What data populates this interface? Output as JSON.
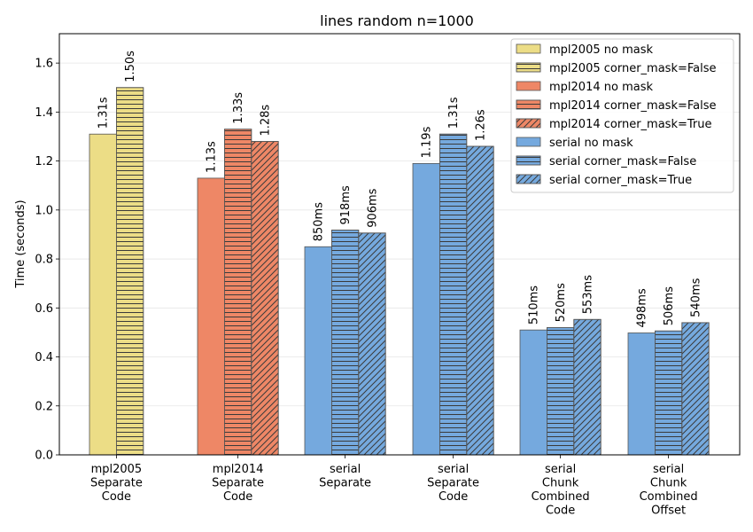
{
  "chart_data": {
    "type": "bar",
    "title": "lines random n=1000",
    "xlabel": "",
    "ylabel": "Time (seconds)",
    "ylim": [
      0,
      1.72
    ],
    "yticks": [
      "0.0",
      "0.2",
      "0.4",
      "0.6",
      "0.8",
      "1.0",
      "1.2",
      "1.4",
      "1.6"
    ],
    "grid": "horizontal",
    "legend_position": "top-right",
    "colors": {
      "mpl2005": "#ecdd86",
      "mpl2014": "#ee8766",
      "serial": "#75a9de"
    },
    "categories": [
      [
        "mpl2005",
        "Separate",
        "Code"
      ],
      [
        "mpl2014",
        "Separate",
        "Code"
      ],
      [
        "serial",
        "Separate"
      ],
      [
        "serial",
        "Separate",
        "Code"
      ],
      [
        "serial",
        "Chunk",
        "Combined",
        "Code"
      ],
      [
        "serial",
        "Chunk",
        "Combined",
        "Offset"
      ]
    ],
    "series": [
      {
        "name": "mpl2005 no mask",
        "group": "mpl2005",
        "hatch": "none",
        "values": [
          1.31,
          null,
          null,
          null,
          null,
          null
        ],
        "labels": [
          "1.31s",
          null,
          null,
          null,
          null,
          null
        ]
      },
      {
        "name": "mpl2005 corner_mask=False",
        "group": "mpl2005",
        "hatch": "horizontal",
        "values": [
          1.5,
          null,
          null,
          null,
          null,
          null
        ],
        "labels": [
          "1.50s",
          null,
          null,
          null,
          null,
          null
        ]
      },
      {
        "name": "mpl2014 no mask",
        "group": "mpl2014",
        "hatch": "none",
        "values": [
          null,
          1.13,
          null,
          null,
          null,
          null
        ],
        "labels": [
          null,
          "1.13s",
          null,
          null,
          null,
          null
        ]
      },
      {
        "name": "mpl2014 corner_mask=False",
        "group": "mpl2014",
        "hatch": "horizontal",
        "values": [
          null,
          1.33,
          null,
          null,
          null,
          null
        ],
        "labels": [
          null,
          "1.33s",
          null,
          null,
          null,
          null
        ]
      },
      {
        "name": "mpl2014 corner_mask=True",
        "group": "mpl2014",
        "hatch": "diagonal",
        "values": [
          null,
          1.28,
          null,
          null,
          null,
          null
        ],
        "labels": [
          null,
          "1.28s",
          null,
          null,
          null,
          null
        ]
      },
      {
        "name": "serial no mask",
        "group": "serial",
        "hatch": "none",
        "values": [
          null,
          null,
          0.85,
          1.19,
          0.51,
          0.498
        ],
        "labels": [
          null,
          null,
          "850ms",
          "1.19s",
          "510ms",
          "498ms"
        ]
      },
      {
        "name": "serial corner_mask=False",
        "group": "serial",
        "hatch": "horizontal",
        "values": [
          null,
          null,
          0.918,
          1.31,
          0.52,
          0.506
        ],
        "labels": [
          null,
          null,
          "918ms",
          "1.31s",
          "520ms",
          "506ms"
        ]
      },
      {
        "name": "serial corner_mask=True",
        "group": "serial",
        "hatch": "diagonal",
        "values": [
          null,
          null,
          0.906,
          1.26,
          0.553,
          0.54
        ],
        "labels": [
          null,
          null,
          "906ms",
          "1.26s",
          "553ms",
          "540ms"
        ]
      }
    ]
  }
}
